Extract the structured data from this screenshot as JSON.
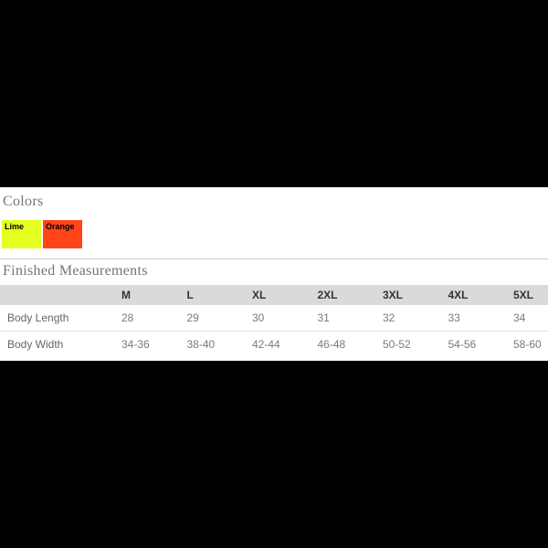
{
  "page": {
    "background": "#000000",
    "band_background": "#ffffff"
  },
  "colors_section": {
    "title": "Colors",
    "swatches": [
      {
        "label": "Lime",
        "color": "#e3ff1f"
      },
      {
        "label": "Orange",
        "color": "#ff4519"
      }
    ]
  },
  "measurements_section": {
    "title": "Finished Measurements",
    "table": {
      "columns": [
        "",
        "M",
        "L",
        "XL",
        "2XL",
        "3XL",
        "4XL",
        "5XL"
      ],
      "rows": [
        {
          "label": "Body Length",
          "values": [
            "28",
            "29",
            "30",
            "31",
            "32",
            "33",
            "34"
          ]
        },
        {
          "label": "Body Width",
          "values": [
            "34-36",
            "38-40",
            "42-44",
            "46-48",
            "50-52",
            "54-56",
            "58-60"
          ]
        }
      ]
    }
  }
}
